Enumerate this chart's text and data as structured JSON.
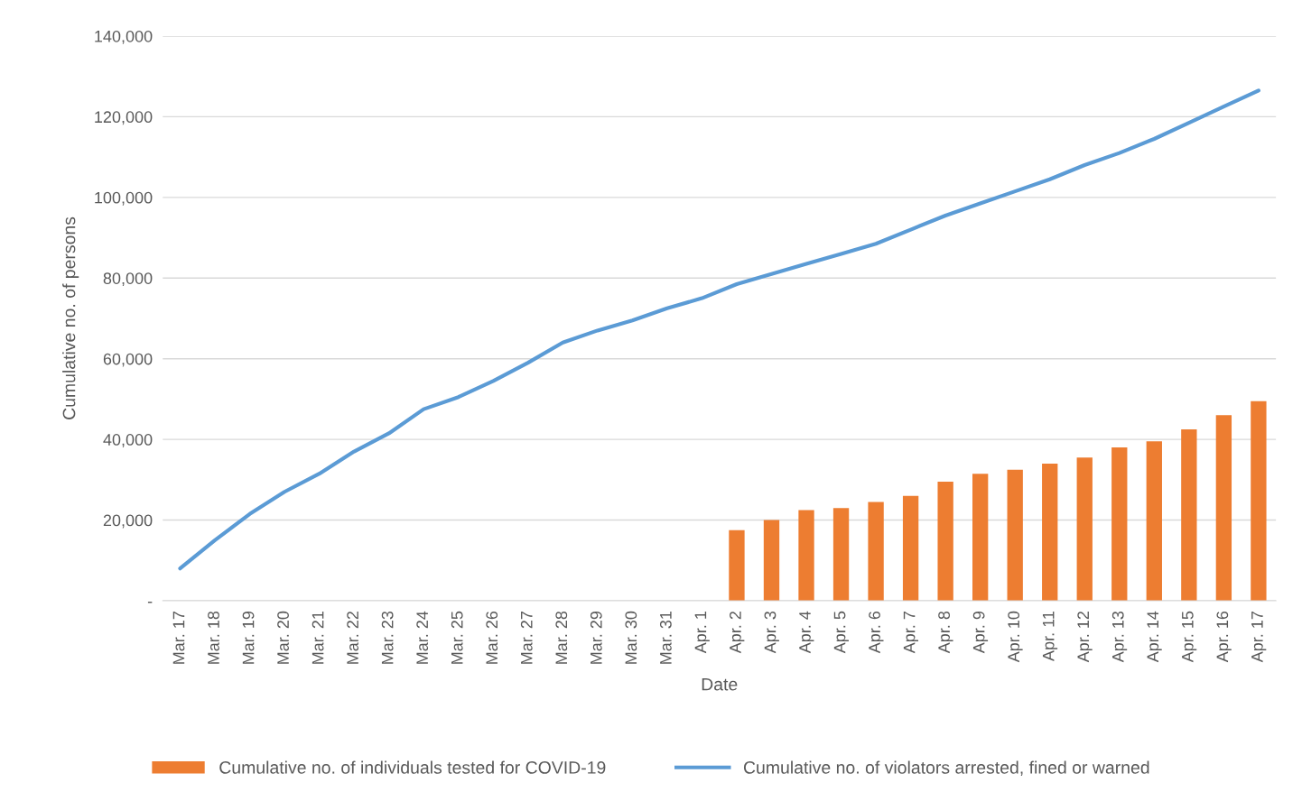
{
  "chart_data": {
    "type": "bar",
    "xlabel": "Date",
    "ylabel": "Cumulative no. of persons",
    "categories": [
      "Mar. 17",
      "Mar. 18",
      "Mar. 19",
      "Mar. 20",
      "Mar. 21",
      "Mar. 22",
      "Mar. 23",
      "Mar. 24",
      "Mar. 25",
      "Mar. 26",
      "Mar. 27",
      "Mar. 28",
      "Mar. 29",
      "Mar. 30",
      "Mar. 31",
      "Apr. 1",
      "Apr. 2",
      "Apr. 3",
      "Apr. 4",
      "Apr. 5",
      "Apr. 6",
      "Apr. 7",
      "Apr. 8",
      "Apr. 9",
      "Apr. 10",
      "Apr. 11",
      "Apr. 12",
      "Apr. 13",
      "Apr. 14",
      "Apr. 15",
      "Apr. 16",
      "Apr. 17"
    ],
    "series": [
      {
        "name": "Cumulative no. of individuals tested for COVID-19",
        "color": "#ed7d31",
        "values": [
          null,
          null,
          null,
          null,
          null,
          null,
          null,
          null,
          null,
          null,
          null,
          null,
          null,
          null,
          null,
          null,
          17500,
          20000,
          22500,
          23000,
          24500,
          26000,
          29500,
          31500,
          32500,
          34000,
          35500,
          38000,
          39500,
          42500,
          46000,
          49500
        ]
      },
      {
        "name": "Cumulative no. of violators arrested, fined or warned",
        "type": "line",
        "color": "#5b9bd5",
        "values": [
          8000,
          15000,
          21500,
          27000,
          31500,
          37000,
          41500,
          47500,
          50500,
          54500,
          59000,
          64000,
          67000,
          69500,
          72500,
          75000,
          78500,
          81000,
          83500,
          86000,
          88500,
          92000,
          95500,
          98500,
          101500,
          104500,
          108000,
          111000,
          114500,
          118500,
          122500,
          126500
        ]
      }
    ],
    "ylim": [
      0,
      140000
    ],
    "yticks": [
      {
        "value": 0,
        "label": "-"
      },
      {
        "value": 20000,
        "label": "20,000"
      },
      {
        "value": 40000,
        "label": "40,000"
      },
      {
        "value": 60000,
        "label": "60,000"
      },
      {
        "value": 80000,
        "label": "80,000"
      },
      {
        "value": 100000,
        "label": "100,000"
      },
      {
        "value": 120000,
        "label": "120,000"
      },
      {
        "value": 140000,
        "label": "140,000"
      }
    ],
    "grid": "y",
    "legend": "bottom",
    "marker": "none",
    "line_style": "solid"
  }
}
